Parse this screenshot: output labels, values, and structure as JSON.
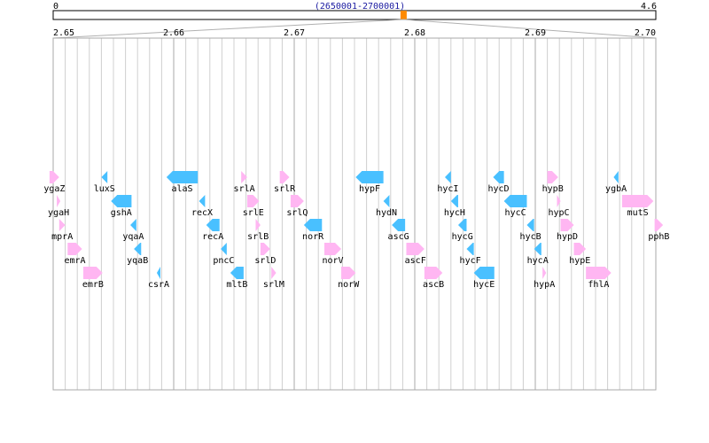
{
  "overview": {
    "start_label": "0",
    "end_label": "4.6",
    "range_label": "(2650001-2700001)",
    "marker_position": 2675001,
    "genome_length_mb": 4.6
  },
  "axis": {
    "ticks": [
      "2.65",
      "2.66",
      "2.67",
      "2.68",
      "2.69",
      "2.70"
    ],
    "start": 2.65,
    "end": 2.7
  },
  "colors": {
    "forward": "#ffb6f2",
    "reverse": "#49c0ff",
    "marker": "#ff8a00",
    "grid": "#d0d0d0",
    "major_grid": "#a8a8a8"
  },
  "genes": [
    {
      "name": "ygaZ",
      "start": 2.6497,
      "end": 2.6505,
      "strand": "+",
      "row": 0
    },
    {
      "name": "ygaH",
      "start": 2.6503,
      "end": 2.6505,
      "strand": "+",
      "row": 1
    },
    {
      "name": "mprA",
      "start": 2.6505,
      "end": 2.651,
      "strand": "+",
      "row": 2
    },
    {
      "name": "emrA",
      "start": 2.6512,
      "end": 2.6524,
      "strand": "+",
      "row": 3
    },
    {
      "name": "emrB",
      "start": 2.6525,
      "end": 2.6541,
      "strand": "+",
      "row": 4
    },
    {
      "name": "luxS",
      "start": 2.654,
      "end": 2.6545,
      "strand": "-",
      "row": 0
    },
    {
      "name": "gshA",
      "start": 2.6548,
      "end": 2.6565,
      "strand": "-",
      "row": 1
    },
    {
      "name": "yqaA",
      "start": 2.6564,
      "end": 2.6569,
      "strand": "-",
      "row": 2
    },
    {
      "name": "yqaB",
      "start": 2.6567,
      "end": 2.6573,
      "strand": "-",
      "row": 3
    },
    {
      "name": "csrA",
      "start": 2.6586,
      "end": 2.6588,
      "strand": "-",
      "row": 4
    },
    {
      "name": "alaS",
      "start": 2.6594,
      "end": 2.662,
      "strand": "-",
      "row": 0
    },
    {
      "name": "recX",
      "start": 2.6621,
      "end": 2.6626,
      "strand": "-",
      "row": 1
    },
    {
      "name": "recA",
      "start": 2.6627,
      "end": 2.6638,
      "strand": "-",
      "row": 2
    },
    {
      "name": "pncC",
      "start": 2.6639,
      "end": 2.6644,
      "strand": "-",
      "row": 3
    },
    {
      "name": "mltB",
      "start": 2.6647,
      "end": 2.6658,
      "strand": "-",
      "row": 4
    },
    {
      "name": "srlA",
      "start": 2.6656,
      "end": 2.6661,
      "strand": "+",
      "row": 0
    },
    {
      "name": "srlE",
      "start": 2.6661,
      "end": 2.6671,
      "strand": "+",
      "row": 1
    },
    {
      "name": "srlB",
      "start": 2.6668,
      "end": 2.6672,
      "strand": "+",
      "row": 2
    },
    {
      "name": "srlD",
      "start": 2.6672,
      "end": 2.668,
      "strand": "+",
      "row": 3
    },
    {
      "name": "srlM",
      "start": 2.6681,
      "end": 2.6685,
      "strand": "+",
      "row": 4
    },
    {
      "name": "srlR",
      "start": 2.6688,
      "end": 2.6696,
      "strand": "+",
      "row": 0
    },
    {
      "name": "srlQ",
      "start": 2.6697,
      "end": 2.6708,
      "strand": "+",
      "row": 1
    },
    {
      "name": "norR",
      "start": 2.6708,
      "end": 2.6723,
      "strand": "-",
      "row": 2
    },
    {
      "name": "norV",
      "start": 2.6725,
      "end": 2.6739,
      "strand": "+",
      "row": 3
    },
    {
      "name": "norW",
      "start": 2.6739,
      "end": 2.6751,
      "strand": "+",
      "row": 4
    },
    {
      "name": "hypF",
      "start": 2.6751,
      "end": 2.6774,
      "strand": "-",
      "row": 0
    },
    {
      "name": "hydN",
      "start": 2.6774,
      "end": 2.6779,
      "strand": "-",
      "row": 1
    },
    {
      "name": "ascG",
      "start": 2.6781,
      "end": 2.6792,
      "strand": "-",
      "row": 2
    },
    {
      "name": "ascF",
      "start": 2.6793,
      "end": 2.6808,
      "strand": "+",
      "row": 3
    },
    {
      "name": "ascB",
      "start": 2.6808,
      "end": 2.6823,
      "strand": "+",
      "row": 4
    },
    {
      "name": "hycI",
      "start": 2.6825,
      "end": 2.683,
      "strand": "-",
      "row": 0
    },
    {
      "name": "hycH",
      "start": 2.683,
      "end": 2.6836,
      "strand": "-",
      "row": 1
    },
    {
      "name": "hycG",
      "start": 2.6836,
      "end": 2.6843,
      "strand": "-",
      "row": 2
    },
    {
      "name": "hycF",
      "start": 2.6843,
      "end": 2.6849,
      "strand": "-",
      "row": 3
    },
    {
      "name": "hycE",
      "start": 2.6849,
      "end": 2.6866,
      "strand": "-",
      "row": 4
    },
    {
      "name": "hycD",
      "start": 2.6865,
      "end": 2.6874,
      "strand": "-",
      "row": 0
    },
    {
      "name": "hycC",
      "start": 2.6874,
      "end": 2.6893,
      "strand": "-",
      "row": 1
    },
    {
      "name": "hycB",
      "start": 2.6893,
      "end": 2.6899,
      "strand": "-",
      "row": 2
    },
    {
      "name": "hycA",
      "start": 2.6899,
      "end": 2.6905,
      "strand": "-",
      "row": 3
    },
    {
      "name": "hypA",
      "start": 2.6906,
      "end": 2.6909,
      "strand": "+",
      "row": 4
    },
    {
      "name": "hypB",
      "start": 2.691,
      "end": 2.6919,
      "strand": "+",
      "row": 0
    },
    {
      "name": "hypC",
      "start": 2.6918,
      "end": 2.6921,
      "strand": "+",
      "row": 1
    },
    {
      "name": "hypD",
      "start": 2.6921,
      "end": 2.6932,
      "strand": "+",
      "row": 2
    },
    {
      "name": "hypE",
      "start": 2.6932,
      "end": 2.6942,
      "strand": "+",
      "row": 3
    },
    {
      "name": "fhlA",
      "start": 2.6942,
      "end": 2.6963,
      "strand": "+",
      "row": 4
    },
    {
      "name": "ygbA",
      "start": 2.6965,
      "end": 2.6969,
      "strand": "-",
      "row": 0
    },
    {
      "name": "mutS",
      "start": 2.6972,
      "end": 2.6998,
      "strand": "+",
      "row": 1
    },
    {
      "name": "pphB",
      "start": 2.6999,
      "end": 2.7006,
      "strand": "+",
      "row": 2
    }
  ]
}
